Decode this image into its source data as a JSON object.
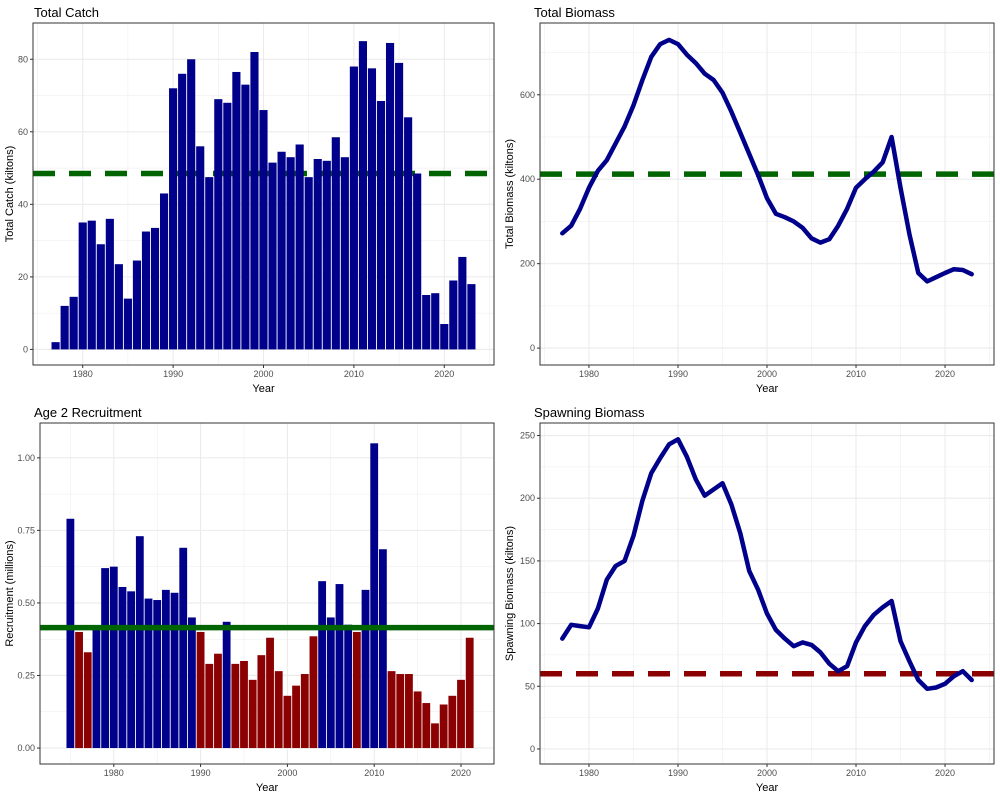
{
  "colors": {
    "navy": "#00008B",
    "green": "#006400",
    "darkred": "#8B0000",
    "grid": "#ebebeb",
    "frame": "#333333"
  },
  "chart_data": [
    {
      "id": "catch",
      "type": "bar",
      "title": "Total Catch",
      "xlabel": "Year",
      "ylabel": "Total Catch (kiltons)",
      "xlim": [
        1974.5,
        2025.5
      ],
      "ylim": [
        -4.3,
        90
      ],
      "xticks": [
        1980,
        1990,
        2000,
        2010,
        2020
      ],
      "yticks": [
        0,
        20,
        40,
        60,
        80
      ],
      "x": [
        1977,
        1978,
        1979,
        1980,
        1981,
        1982,
        1983,
        1984,
        1985,
        1986,
        1987,
        1988,
        1989,
        1990,
        1991,
        1992,
        1993,
        1994,
        1995,
        1996,
        1997,
        1998,
        1999,
        2000,
        2001,
        2002,
        2003,
        2004,
        2005,
        2006,
        2007,
        2008,
        2009,
        2010,
        2011,
        2012,
        2013,
        2014,
        2015,
        2016,
        2017,
        2018,
        2019,
        2020,
        2021,
        2022,
        2023
      ],
      "values": [
        2,
        12,
        14.5,
        35,
        35.5,
        29,
        36,
        23.5,
        14,
        24.5,
        32.5,
        33.5,
        43,
        72,
        76,
        80,
        56,
        47.5,
        69,
        68,
        76.5,
        73,
        82,
        66,
        51.5,
        54.5,
        53,
        56.5,
        47.5,
        52.5,
        52,
        58.5,
        53,
        78,
        85,
        77.5,
        68.5,
        84.5,
        79,
        64,
        48.5,
        15,
        15.5,
        7,
        19,
        25.5,
        18
      ],
      "bar_color": "#00008B",
      "reference_line": {
        "value": 48.5,
        "color": "#006400",
        "style": "dashed"
      }
    },
    {
      "id": "biomass",
      "type": "line",
      "title": "Total Biomass",
      "xlabel": "Year",
      "ylabel": "Total Biomass (kiltons)",
      "xlim": [
        1974.5,
        2025.5
      ],
      "ylim": [
        -40,
        770
      ],
      "xticks": [
        1980,
        1990,
        2000,
        2010,
        2020
      ],
      "yticks": [
        0,
        200,
        400,
        600
      ],
      "x": [
        1977,
        1978,
        1979,
        1980,
        1981,
        1982,
        1983,
        1984,
        1985,
        1986,
        1987,
        1988,
        1989,
        1990,
        1991,
        1992,
        1993,
        1994,
        1995,
        1996,
        1997,
        1998,
        1999,
        2000,
        2001,
        2002,
        2003,
        2004,
        2005,
        2006,
        2007,
        2008,
        2009,
        2010,
        2011,
        2012,
        2013,
        2014,
        2015,
        2016,
        2017,
        2018,
        2019,
        2020,
        2021,
        2022,
        2023
      ],
      "values": [
        272,
        290,
        330,
        380,
        420,
        445,
        485,
        525,
        575,
        635,
        690,
        720,
        730,
        720,
        695,
        675,
        650,
        635,
        605,
        560,
        510,
        460,
        410,
        355,
        318,
        310,
        300,
        285,
        260,
        250,
        258,
        290,
        330,
        380,
        400,
        418,
        440,
        500,
        380,
        270,
        178,
        158,
        168,
        178,
        187,
        185,
        175
      ],
      "line_color": "#00008B",
      "reference_line": {
        "value": 412,
        "color": "#006400",
        "style": "dashed"
      }
    },
    {
      "id": "recruit",
      "type": "bar",
      "title": "Age 2 Recruitment",
      "xlabel": "Year",
      "ylabel": "Recruitment (millions)",
      "xlim": [
        1971.5,
        2023.8
      ],
      "ylim": [
        -0.055,
        1.12
      ],
      "xticks": [
        1980,
        1990,
        2000,
        2010,
        2020
      ],
      "yticks": [
        0.0,
        0.25,
        0.5,
        0.75,
        1.0
      ],
      "ytick_labels": [
        "0.00",
        "0.25",
        "0.50",
        "0.75",
        "1.00"
      ],
      "x": [
        1975,
        1976,
        1977,
        1978,
        1979,
        1980,
        1981,
        1982,
        1983,
        1984,
        1985,
        1986,
        1987,
        1988,
        1989,
        1990,
        1991,
        1992,
        1993,
        1994,
        1995,
        1996,
        1997,
        1998,
        1999,
        2000,
        2001,
        2002,
        2003,
        2004,
        2005,
        2006,
        2007,
        2008,
        2009,
        2010,
        2011,
        2012,
        2013,
        2014,
        2015,
        2016,
        2017,
        2018,
        2019,
        2020,
        2021
      ],
      "values": [
        0.79,
        0.4,
        0.33,
        0.42,
        0.62,
        0.625,
        0.555,
        0.54,
        0.73,
        0.515,
        0.51,
        0.545,
        0.535,
        0.69,
        0.45,
        0.4,
        0.29,
        0.325,
        0.435,
        0.29,
        0.3,
        0.235,
        0.32,
        0.38,
        0.265,
        0.18,
        0.215,
        0.255,
        0.385,
        0.575,
        0.45,
        0.565,
        0.425,
        0.4,
        0.545,
        1.05,
        0.685,
        0.265,
        0.255,
        0.255,
        0.195,
        0.155,
        0.085,
        0.15,
        0.18,
        0.235,
        0.38
      ],
      "above_color": "#00008B",
      "below_color": "#8B0000",
      "reference_line": {
        "value": 0.415,
        "color": "#006400",
        "style": "solid"
      }
    },
    {
      "id": "ssb",
      "type": "line",
      "title": "Spawning Biomass",
      "xlabel": "Year",
      "ylabel": "Spawning Biomass (kiltons)",
      "xlim": [
        1974.5,
        2025.5
      ],
      "ylim": [
        -12,
        260
      ],
      "xticks": [
        1980,
        1990,
        2000,
        2010,
        2020
      ],
      "yticks": [
        0,
        50,
        100,
        150,
        200,
        250
      ],
      "x": [
        1977,
        1978,
        1979,
        1980,
        1981,
        1982,
        1983,
        1984,
        1985,
        1986,
        1987,
        1988,
        1989,
        1990,
        1991,
        1992,
        1993,
        1994,
        1995,
        1996,
        1997,
        1998,
        1999,
        2000,
        2001,
        2002,
        2003,
        2004,
        2005,
        2006,
        2007,
        2008,
        2009,
        2010,
        2011,
        2012,
        2013,
        2014,
        2015,
        2016,
        2017,
        2018,
        2019,
        2020,
        2021,
        2022,
        2023
      ],
      "values": [
        88,
        99,
        98,
        97,
        112,
        135,
        146,
        150,
        170,
        198,
        220,
        232,
        243,
        247,
        233,
        215,
        202,
        207,
        212,
        195,
        172,
        142,
        127,
        108,
        95,
        88,
        82,
        85,
        83,
        77,
        68,
        62,
        66,
        85,
        98,
        107,
        113,
        118,
        86,
        70,
        55,
        48,
        49,
        52,
        58,
        62,
        55
      ],
      "line_color": "#00008B",
      "reference_line": {
        "value": 60,
        "color": "#8B0000",
        "style": "dashed"
      }
    }
  ]
}
